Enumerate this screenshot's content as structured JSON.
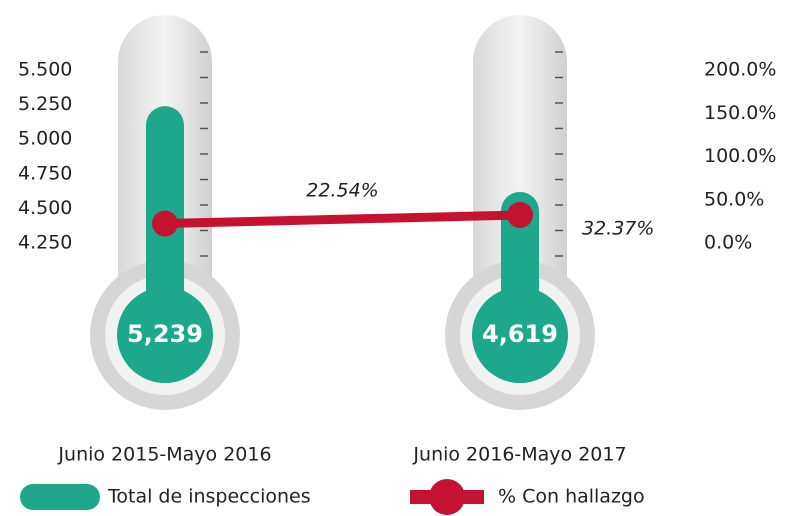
{
  "chart_data": {
    "type": "bar",
    "categories": [
      "Junio 2015-Mayo 2016",
      "Junio 2016-Mayo 2017"
    ],
    "series": [
      {
        "name": "Total de inspecciones",
        "color": "#1ea88b",
        "values": [
          5239,
          4619
        ],
        "value_labels": [
          "5,239",
          "4,619"
        ]
      },
      {
        "name": "% Con hallazgo",
        "type": "line",
        "axis": "y2",
        "color": "#c41230",
        "values": [
          22.54,
          32.37
        ],
        "value_labels": [
          "22.54%",
          "32.37%"
        ]
      }
    ],
    "ylim": [
      4250,
      5500
    ],
    "yticks": [
      {
        "value": 4250,
        "label": "4.250"
      },
      {
        "value": 4500,
        "label": "4.500"
      },
      {
        "value": 4750,
        "label": "4.750"
      },
      {
        "value": 5000,
        "label": "5.000"
      },
      {
        "value": 5250,
        "label": "5.250"
      },
      {
        "value": 5500,
        "label": "5.500"
      }
    ],
    "y2lim": [
      0,
      200
    ],
    "y2ticks": [
      {
        "value": 0,
        "label": "0.0%"
      },
      {
        "value": 50,
        "label": "50.0%"
      },
      {
        "value": 100,
        "label": "100.0%"
      },
      {
        "value": 150,
        "label": "150.0%"
      },
      {
        "value": 200,
        "label": "200.0%"
      }
    ],
    "legend": "bottom"
  }
}
